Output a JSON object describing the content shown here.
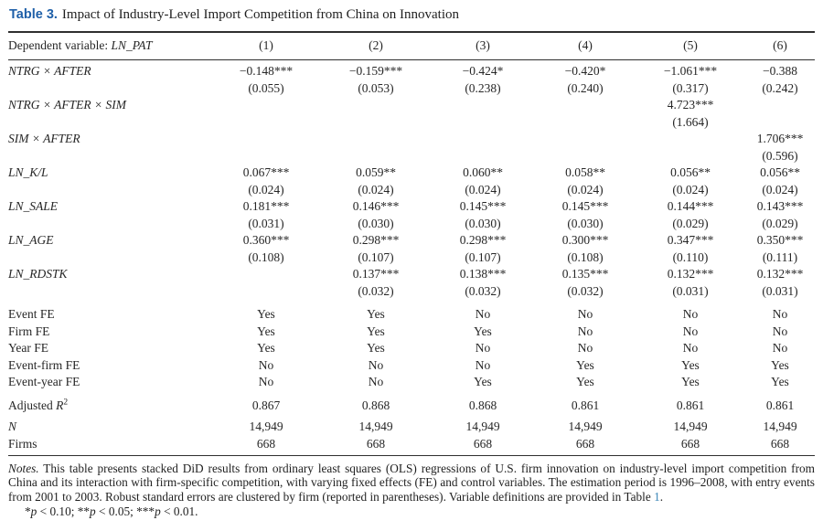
{
  "title": {
    "tag": "Table 3.",
    "text": "Impact of Industry-Level Import Competition from China on Innovation"
  },
  "header": {
    "dep_var_prefix": "Dependent variable: ",
    "dep_var": "LN_PAT",
    "columns": [
      "(1)",
      "(2)",
      "(3)",
      "(4)",
      "(5)",
      "(6)"
    ]
  },
  "coef_rows": [
    {
      "label": "NTRG × AFTER",
      "coefs": [
        "−0.148***",
        "−0.159***",
        "−0.424*",
        "−0.420*",
        "−1.061***",
        "−0.388"
      ],
      "ses": [
        "(0.055)",
        "(0.053)",
        "(0.238)",
        "(0.240)",
        "(0.317)",
        "(0.242)"
      ]
    },
    {
      "label": "NTRG × AFTER × SIM",
      "coefs": [
        "",
        "",
        "",
        "",
        "4.723***",
        ""
      ],
      "ses": [
        "",
        "",
        "",
        "",
        "(1.664)",
        ""
      ]
    },
    {
      "label": "SIM × AFTER",
      "coefs": [
        "",
        "",
        "",
        "",
        "",
        "1.706***"
      ],
      "ses": [
        "",
        "",
        "",
        "",
        "",
        "(0.596)"
      ]
    },
    {
      "label": "LN_K/L",
      "coefs": [
        "0.067***",
        "0.059**",
        "0.060**",
        "0.058**",
        "0.056**",
        "0.056**"
      ],
      "ses": [
        "(0.024)",
        "(0.024)",
        "(0.024)",
        "(0.024)",
        "(0.024)",
        "(0.024)"
      ]
    },
    {
      "label": "LN_SALE",
      "coefs": [
        "0.181***",
        "0.146***",
        "0.145***",
        "0.145***",
        "0.144***",
        "0.143***"
      ],
      "ses": [
        "(0.031)",
        "(0.030)",
        "(0.030)",
        "(0.030)",
        "(0.029)",
        "(0.029)"
      ]
    },
    {
      "label": "LN_AGE",
      "coefs": [
        "0.360***",
        "0.298***",
        "0.298***",
        "0.300***",
        "0.347***",
        "0.350***"
      ],
      "ses": [
        "(0.108)",
        "(0.107)",
        "(0.107)",
        "(0.108)",
        "(0.110)",
        "(0.111)"
      ]
    },
    {
      "label": "LN_RDSTK",
      "coefs": [
        "",
        "0.137***",
        "0.138***",
        "0.135***",
        "0.132***",
        "0.132***"
      ],
      "ses": [
        "",
        "(0.032)",
        "(0.032)",
        "(0.032)",
        "(0.031)",
        "(0.031)"
      ]
    }
  ],
  "fe_rows": [
    {
      "label": "Event FE",
      "values": [
        "Yes",
        "Yes",
        "No",
        "No",
        "No",
        "No"
      ]
    },
    {
      "label": "Firm FE",
      "values": [
        "Yes",
        "Yes",
        "Yes",
        "No",
        "No",
        "No"
      ]
    },
    {
      "label": "Year FE",
      "values": [
        "Yes",
        "Yes",
        "No",
        "No",
        "No",
        "No"
      ]
    },
    {
      "label": "Event-firm FE",
      "values": [
        "No",
        "No",
        "No",
        "Yes",
        "Yes",
        "Yes"
      ]
    },
    {
      "label": "Event-year FE",
      "values": [
        "No",
        "No",
        "Yes",
        "Yes",
        "Yes",
        "Yes"
      ]
    }
  ],
  "stat_rows": [
    {
      "label_parts": [
        {
          "t": "Adjusted "
        },
        {
          "t": "R",
          "i": true
        },
        {
          "t": "2",
          "sup": true
        }
      ],
      "values": [
        "0.867",
        "0.868",
        "0.868",
        "0.861",
        "0.861",
        "0.861"
      ]
    },
    {
      "label_parts": [
        {
          "t": "N",
          "i": true
        }
      ],
      "values": [
        "14,949",
        "14,949",
        "14,949",
        "14,949",
        "14,949",
        "14,949"
      ]
    },
    {
      "label_parts": [
        {
          "t": "Firms"
        }
      ],
      "values": [
        "668",
        "668",
        "668",
        "668",
        "668",
        "668"
      ]
    }
  ],
  "notes": {
    "label": "Notes.",
    "body": " This table presents stacked DiD results from ordinary least squares (OLS) regressions of U.S. firm innovation on industry-level import competition from China and its interaction with firm-specific competition, with varying fixed effects (FE) and control variables. The estimation period is 1996–2008, with entry events from 2001 to 2003. Robust standard errors are clustered by firm (reported in parentheses). Variable definitions are provided in Table ",
    "link": "1",
    "after": ".",
    "sig_parts": [
      {
        "t": "*"
      },
      {
        "t": "p",
        "i": true
      },
      {
        "t": " < 0.10; **"
      },
      {
        "t": "p",
        "i": true
      },
      {
        "t": " < 0.05; ***"
      },
      {
        "t": "p",
        "i": true
      },
      {
        "t": " < 0.01."
      }
    ]
  },
  "colors": {
    "title_blue": "#1e5fa8",
    "link_blue": "#3c87b9",
    "rule": "#2f2f2f",
    "text": "#262626"
  }
}
